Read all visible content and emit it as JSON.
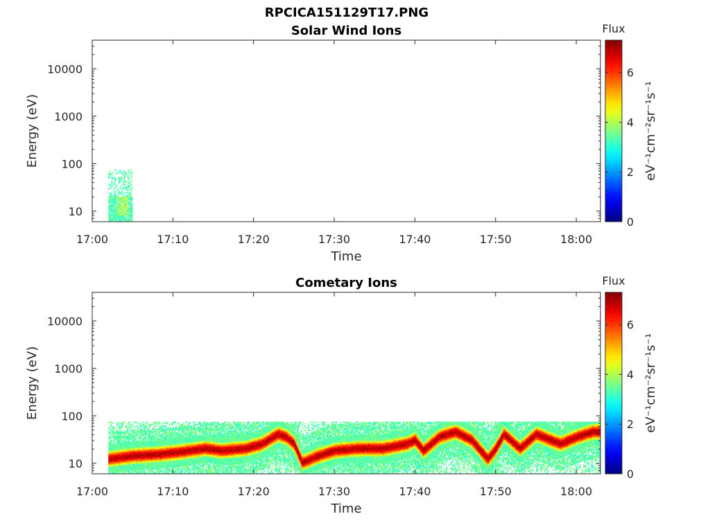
{
  "figure_title": "RPCICA151129T17.PNG",
  "chart_data": [
    {
      "type": "heatmap",
      "title": "Solar Wind Ions",
      "xlabel": "Time",
      "ylabel": "Energy (eV)",
      "xscale": "time",
      "yscale": "log",
      "xlim": [
        "17:00",
        "18:03"
      ],
      "ylim": [
        6,
        40000
      ],
      "x_ticks": [
        "17:00",
        "17:10",
        "17:20",
        "17:30",
        "17:40",
        "17:50",
        "18:00"
      ],
      "y_ticks": [
        "10",
        "100",
        "1000",
        "10000"
      ],
      "colorbar": {
        "title": "Flux",
        "label": "eV⁻¹cm⁻²sr⁻¹s⁻¹",
        "range": [
          0,
          7.3
        ],
        "ticks": [
          "0",
          "2",
          "4",
          "6"
        ],
        "colormap": "jet"
      },
      "data_summary": {
        "time_start": "17:02",
        "time_end": "17:05",
        "energy_max": 80,
        "energy_min": 6,
        "flux_typical": 3.0,
        "flux_peak": 4.2
      }
    },
    {
      "type": "heatmap",
      "title": "Cometary Ions",
      "xlabel": "Time",
      "ylabel": "Energy (eV)",
      "xscale": "time",
      "yscale": "log",
      "xlim": [
        "17:00",
        "18:03"
      ],
      "ylim": [
        6,
        40000
      ],
      "x_ticks": [
        "17:00",
        "17:10",
        "17:20",
        "17:30",
        "17:40",
        "17:50",
        "18:00"
      ],
      "y_ticks": [
        "10",
        "100",
        "1000",
        "10000"
      ],
      "colorbar": {
        "title": "Flux",
        "label": "eV⁻¹cm⁻²sr⁻¹s⁻¹",
        "range": [
          0,
          7.3
        ],
        "ticks": [
          "0",
          "2",
          "4",
          "6"
        ],
        "colormap": "jet"
      },
      "data_summary": {
        "time_start": "17:02",
        "time_end": "18:03",
        "energy_max": 80,
        "energy_min": 6,
        "peak_energy_track": [
          {
            "t": "17:02",
            "e": 12
          },
          {
            "t": "17:05",
            "e": 14
          },
          {
            "t": "17:08",
            "e": 15
          },
          {
            "t": "17:11",
            "e": 17
          },
          {
            "t": "17:14",
            "e": 20
          },
          {
            "t": "17:16",
            "e": 18
          },
          {
            "t": "17:19",
            "e": 20
          },
          {
            "t": "17:21",
            "e": 25
          },
          {
            "t": "17:23",
            "e": 40
          },
          {
            "t": "17:24",
            "e": 35
          },
          {
            "t": "17:25",
            "e": 25
          },
          {
            "t": "17:26",
            "e": 10
          },
          {
            "t": "17:28",
            "e": 14
          },
          {
            "t": "17:30",
            "e": 18
          },
          {
            "t": "17:33",
            "e": 20
          },
          {
            "t": "17:36",
            "e": 20
          },
          {
            "t": "17:39",
            "e": 25
          },
          {
            "t": "17:40",
            "e": 30
          },
          {
            "t": "17:41",
            "e": 18
          },
          {
            "t": "17:43",
            "e": 35
          },
          {
            "t": "17:45",
            "e": 45
          },
          {
            "t": "17:47",
            "e": 30
          },
          {
            "t": "17:49",
            "e": 12
          },
          {
            "t": "17:50",
            "e": 20
          },
          {
            "t": "17:51",
            "e": 40
          },
          {
            "t": "17:53",
            "e": 20
          },
          {
            "t": "17:55",
            "e": 40
          },
          {
            "t": "17:58",
            "e": 25
          },
          {
            "t": "18:00",
            "e": 35
          },
          {
            "t": "18:02",
            "e": 45
          }
        ],
        "flux_peak": 7.2,
        "flux_background": 3.0
      }
    }
  ]
}
